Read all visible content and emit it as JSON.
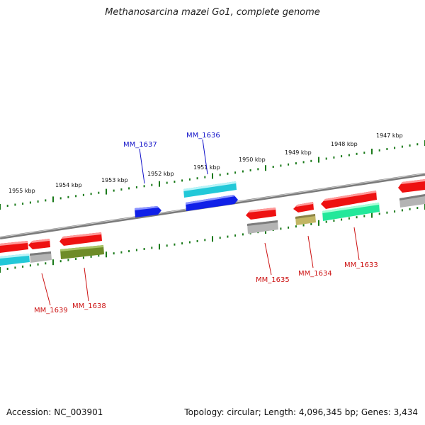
{
  "title": "Methanosarcina mazei Go1, complete genome",
  "footer": {
    "accession": "Accession: NC_003901",
    "stats": "Topology: circular; Length: 4,096,345 bp; Genes: 3,434"
  },
  "colors": {
    "backbone": "#7a7a7a",
    "ticks": "#1a7a1a",
    "highlight_label": "#1010c8",
    "other_label": "#cc1111",
    "cds": "#ee1111",
    "gene_cyan": "#22c8d8",
    "gene_blue": "#1020e8",
    "gene_gray": "#b4b4b4",
    "gene_olive": "#6e8c28",
    "gene_khaki": "#c2b664",
    "gene_green": "#22e89a"
  },
  "kbp_labels": [
    "1955 kbp",
    "1954 kbp",
    "1953 kbp",
    "1952 kbp",
    "1951 kbp",
    "1950 kbp",
    "1949 kbp",
    "1948 kbp",
    "1947 kbp"
  ],
  "genes": [
    {
      "name": "MM_1637",
      "highlight": true
    },
    {
      "name": "MM_1636",
      "highlight": true
    },
    {
      "name": "MM_1639",
      "highlight": false
    },
    {
      "name": "MM_1638",
      "highlight": false
    },
    {
      "name": "MM_1635",
      "highlight": false
    },
    {
      "name": "MM_1634",
      "highlight": false
    },
    {
      "name": "MM_1633",
      "highlight": false
    }
  ]
}
